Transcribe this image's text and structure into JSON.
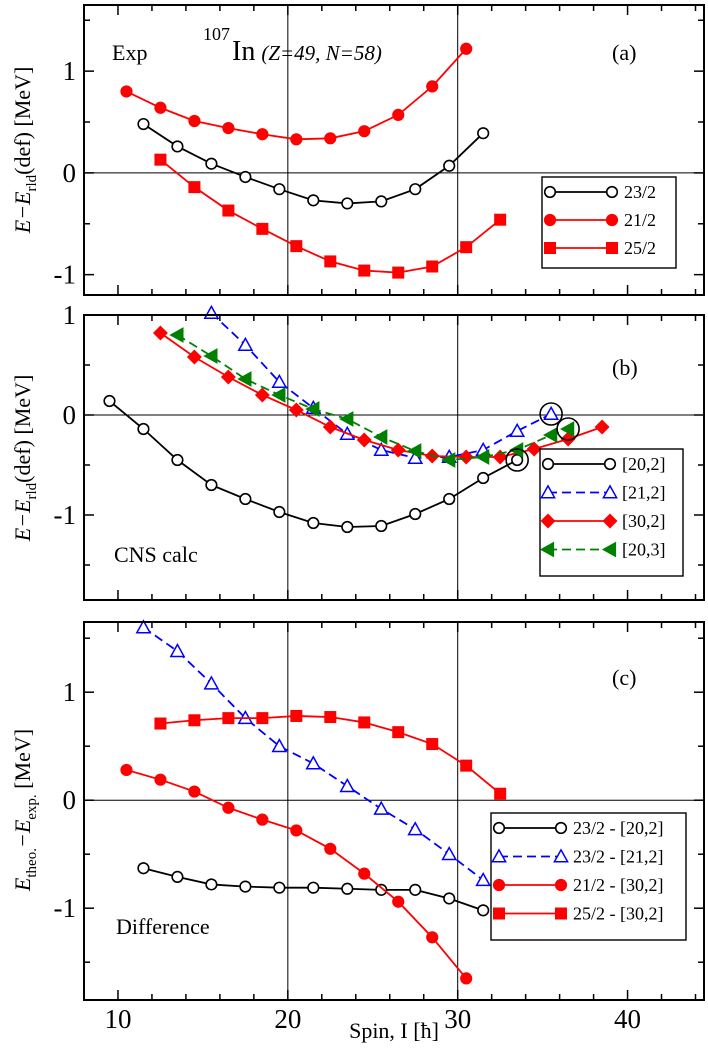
{
  "figure": {
    "x_axis_label": "Spin, I [ħ]",
    "x_ticks": [
      "10",
      "20",
      "30",
      "40"
    ],
    "x_tick_values": [
      10,
      20,
      30,
      40
    ],
    "xlim": [
      8,
      44.5
    ]
  },
  "chart_data": [
    {
      "type": "line",
      "panel": "a",
      "tag": "(a)",
      "corner_label": "Exp",
      "title": {
        "mass": "107",
        "symbol": "In",
        "detail": "(Z=49, N=58)"
      },
      "ylabel": "E−Erld(def) [MeV]",
      "ylabel_parts": {
        "main": "E−E",
        "sub": "rld",
        "rest": "(def) [MeV]"
      },
      "ylim": [
        -1.2,
        1.65
      ],
      "y_ticks": [
        "-1",
        "0",
        "1"
      ],
      "y_tick_values": [
        -1,
        0,
        1
      ],
      "series": [
        {
          "name": "23/2",
          "color": "#000000",
          "marker": "circle-open",
          "dash": "solid",
          "x": [
            11.5,
            13.5,
            15.5,
            17.5,
            19.5,
            21.5,
            23.5,
            25.5,
            27.5,
            29.5,
            31.5
          ],
          "y": [
            0.48,
            0.26,
            0.09,
            -0.04,
            -0.16,
            -0.27,
            -0.3,
            -0.28,
            -0.16,
            0.07,
            0.39
          ]
        },
        {
          "name": "21/2",
          "color": "#ff0000",
          "marker": "circle-filled",
          "dash": "solid",
          "x": [
            10.5,
            12.5,
            14.5,
            16.5,
            18.5,
            20.5,
            22.5,
            24.5,
            26.5,
            28.5,
            30.5
          ],
          "y": [
            0.8,
            0.64,
            0.51,
            0.44,
            0.38,
            0.33,
            0.34,
            0.41,
            0.57,
            0.85,
            1.22
          ]
        },
        {
          "name": "25/2",
          "color": "#ff0000",
          "marker": "square-filled",
          "dash": "solid",
          "x": [
            12.5,
            14.5,
            16.5,
            18.5,
            20.5,
            22.5,
            24.5,
            26.5,
            28.5,
            30.5,
            32.5
          ],
          "y": [
            0.13,
            -0.14,
            -0.37,
            -0.55,
            -0.72,
            -0.87,
            -0.96,
            -0.98,
            -0.92,
            -0.73,
            -0.46
          ]
        }
      ]
    },
    {
      "type": "line",
      "panel": "b",
      "tag": "(b)",
      "corner_label": "CNS calc",
      "ylabel": "E−Erld(def) [MeV]",
      "ylabel_parts": {
        "main": "E−E",
        "sub": "rld",
        "rest": "(def) [MeV]"
      },
      "ylim": [
        -1.85,
        1.0
      ],
      "y_ticks": [
        "-1",
        "0",
        "1"
      ],
      "y_tick_values": [
        -1,
        0,
        1
      ],
      "series": [
        {
          "name": "[20,2]",
          "color": "#000000",
          "marker": "circle-open",
          "dash": "solid",
          "x": [
            9.5,
            11.5,
            13.5,
            15.5,
            17.5,
            19.5,
            21.5,
            23.5,
            25.5,
            27.5,
            29.5,
            31.5,
            33.5
          ],
          "y": [
            0.14,
            -0.14,
            -0.45,
            -0.7,
            -0.84,
            -0.97,
            -1.08,
            -1.12,
            -1.11,
            -0.99,
            -0.84,
            -0.63,
            -0.45
          ]
        },
        {
          "name": "[21,2]",
          "color": "#0000ff",
          "marker": "triangle-open",
          "dash": "dashed",
          "x": [
            15.5,
            17.5,
            19.5,
            21.5,
            23.5,
            25.5,
            27.5,
            29.5,
            31.5,
            33.5,
            35.5
          ],
          "y": [
            1.02,
            0.7,
            0.33,
            0.07,
            -0.19,
            -0.35,
            -0.43,
            -0.42,
            -0.35,
            -0.16,
            0.01
          ]
        },
        {
          "name": "[30,2]",
          "color": "#ff0000",
          "marker": "diamond-filled",
          "dash": "solid",
          "x": [
            12.5,
            14.5,
            16.5,
            18.5,
            20.5,
            22.5,
            24.5,
            26.5,
            28.5,
            30.5,
            32.5,
            34.5,
            36.5,
            38.5
          ],
          "y": [
            0.82,
            0.58,
            0.38,
            0.2,
            0.05,
            -0.12,
            -0.25,
            -0.35,
            -0.41,
            -0.42,
            -0.42,
            -0.34,
            -0.24,
            -0.12
          ]
        },
        {
          "name": "[20,3]",
          "color": "#008000",
          "marker": "triangle-left-filled",
          "dash": "dashed",
          "x": [
            13.5,
            15.5,
            17.5,
            19.5,
            21.5,
            23.5,
            25.5,
            27.5,
            29.5,
            31.5,
            33.5,
            35.5,
            36.5
          ],
          "y": [
            0.8,
            0.59,
            0.36,
            0.2,
            0.06,
            -0.04,
            -0.22,
            -0.36,
            -0.45,
            -0.42,
            -0.35,
            -0.2,
            -0.14
          ]
        }
      ],
      "circled_points": [
        {
          "x": 33.5,
          "y": -0.45
        },
        {
          "x": 35.5,
          "y": 0.01
        },
        {
          "x": 36.5,
          "y": -0.14
        }
      ]
    },
    {
      "type": "line",
      "panel": "c",
      "tag": "(c)",
      "corner_label": "Difference",
      "ylabel": "Etheo.−Eexp. [MeV]",
      "ylabel_parts": {
        "main": "E",
        "sub": "theo.",
        "mid": "−E",
        "sub2": "exp.",
        "rest": " [MeV]"
      },
      "ylim": [
        -1.85,
        1.65
      ],
      "y_ticks": [
        "-1",
        "0",
        "1"
      ],
      "y_tick_values": [
        -1,
        0,
        1
      ],
      "series": [
        {
          "name": "23/2 - [20,2]",
          "color": "#000000",
          "marker": "circle-open",
          "dash": "solid",
          "x": [
            11.5,
            13.5,
            15.5,
            17.5,
            19.5,
            21.5,
            23.5,
            25.5,
            27.5,
            29.5,
            31.5
          ],
          "y": [
            -0.63,
            -0.71,
            -0.78,
            -0.8,
            -0.81,
            -0.81,
            -0.82,
            -0.83,
            -0.83,
            -0.91,
            -1.02
          ]
        },
        {
          "name": "23/2 - [21,2]",
          "color": "#0000ff",
          "marker": "triangle-open",
          "dash": "dashed",
          "x": [
            11.5,
            13.5,
            15.5,
            17.5,
            19.5,
            21.5,
            23.5,
            25.5,
            27.5,
            29.5,
            31.5
          ],
          "y": [
            1.6,
            1.38,
            1.08,
            0.76,
            0.5,
            0.34,
            0.13,
            -0.08,
            -0.27,
            -0.5,
            -0.74
          ]
        },
        {
          "name": "21/2 - [30,2]",
          "color": "#ff0000",
          "marker": "circle-filled",
          "dash": "solid",
          "x": [
            10.5,
            12.5,
            14.5,
            16.5,
            18.5,
            20.5,
            22.5,
            24.5,
            26.5,
            28.5,
            30.5
          ],
          "y": [
            0.28,
            0.19,
            0.08,
            -0.07,
            -0.18,
            -0.28,
            -0.45,
            -0.68,
            -0.94,
            -1.27,
            -1.65
          ]
        },
        {
          "name": "25/2 - [30,2]",
          "color": "#ff0000",
          "marker": "square-filled",
          "dash": "solid",
          "x": [
            12.5,
            14.5,
            16.5,
            18.5,
            20.5,
            22.5,
            24.5,
            26.5,
            28.5,
            30.5,
            32.5
          ],
          "y": [
            0.71,
            0.74,
            0.76,
            0.76,
            0.78,
            0.77,
            0.72,
            0.63,
            0.52,
            0.32,
            0.06
          ]
        }
      ]
    }
  ]
}
